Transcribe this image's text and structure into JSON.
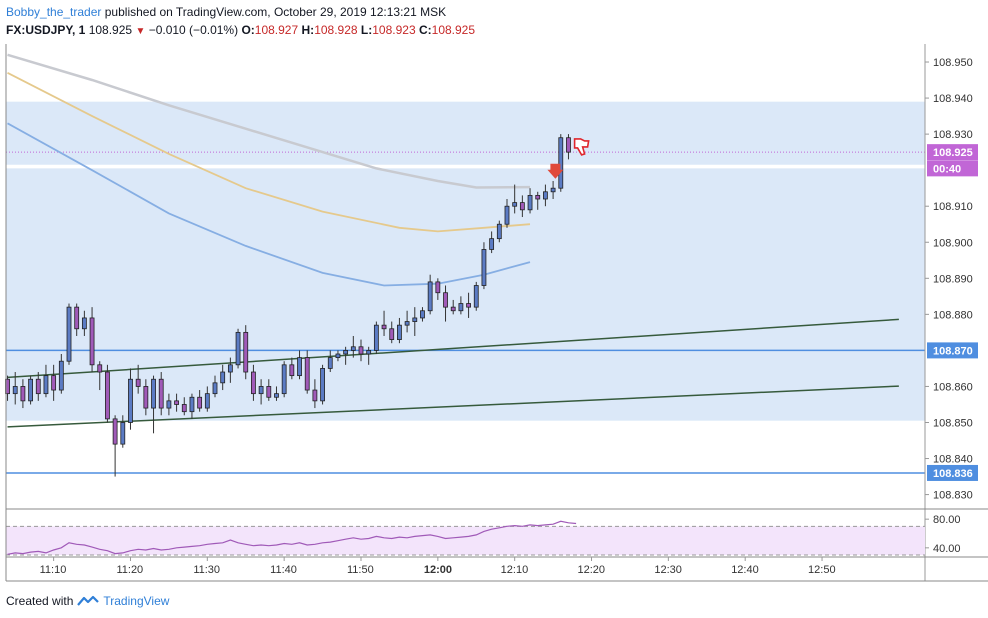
{
  "header": {
    "author": "Bobby_the_trader",
    "published_text": "published on TradingView.com, October 29, 2019 12:13:21 MSK",
    "symbol": "FX:USDJPY, 1",
    "price": "108.925",
    "change": "−0.010 (−0.01%)",
    "o_label": "O:",
    "o_value": "108.927",
    "h_label": "H:",
    "h_value": "108.928",
    "l_label": "L:",
    "l_value": "108.923",
    "c_label": "C:",
    "c_value": "108.925"
  },
  "footer": {
    "created_with": "Created with",
    "brand": "TradingView"
  },
  "colors": {
    "bull": "#5b7bc4",
    "bear": "#a05ab8",
    "ma_gray": "#c8cad0",
    "ma_tan": "#e5c98c",
    "ma_blue": "#86aee3",
    "zone": "#dbe8f8",
    "hline": "#4f8ee0",
    "trend": "#365a3c",
    "rsi_line": "#a05ab8",
    "rsi_band": "#f3e4fb",
    "price_badge": "#c166d6"
  },
  "chart_data": {
    "type": "candlestick",
    "symbol": "FX:USDJPY",
    "interval": "1",
    "ylim": [
      108.826,
      108.955
    ],
    "x_range_minutes": [
      -56.2,
      63.4
    ],
    "x_note": "minutes relative to 12:00",
    "y_ticks": [
      "108.950",
      "108.940",
      "108.930",
      "108.910",
      "108.900",
      "108.890",
      "108.880",
      "108.860",
      "108.850",
      "108.840",
      "108.830"
    ],
    "x_ticks": [
      {
        "label": "11:10",
        "t": -50
      },
      {
        "label": "11:20",
        "t": -40
      },
      {
        "label": "11:30",
        "t": -30
      },
      {
        "label": "11:40",
        "t": -20
      },
      {
        "label": "11:50",
        "t": -10
      },
      {
        "label": "12:00",
        "t": 0
      },
      {
        "label": "12:10",
        "t": 10
      },
      {
        "label": "12:20",
        "t": 20
      },
      {
        "label": "12:30",
        "t": 30
      },
      {
        "label": "12:40",
        "t": 40
      },
      {
        "label": "12:50",
        "t": 50
      }
    ],
    "price_labels": [
      {
        "text": "108.925",
        "value": 108.925,
        "kind": "last"
      },
      {
        "text": "00:40",
        "value": 108.9205,
        "kind": "countdown"
      },
      {
        "text": "108.870",
        "value": 108.87,
        "kind": "level"
      },
      {
        "text": "108.836",
        "value": 108.836,
        "kind": "level"
      }
    ],
    "horizontal_levels": [
      108.87,
      108.836
    ],
    "last_price": 108.925,
    "zones": [
      {
        "from": 108.9215,
        "to": 108.939
      },
      {
        "from": 108.8505,
        "to": 108.9205
      }
    ],
    "trendlines": [
      {
        "t1": -56,
        "p1": 108.8625,
        "t2": 60,
        "p2": 108.8786
      },
      {
        "t1": -56,
        "p1": 108.8488,
        "t2": 60,
        "p2": 108.8601
      }
    ],
    "moving_averages": [
      {
        "color_key": "ma_gray",
        "points": [
          [
            -56,
            108.952
          ],
          [
            -45,
            108.945
          ],
          [
            -35,
            108.938
          ],
          [
            -25,
            108.9315
          ],
          [
            -15,
            108.925
          ],
          [
            -8,
            108.9205
          ],
          [
            0,
            108.917
          ],
          [
            5,
            108.9152
          ],
          [
            12,
            108.9153
          ]
        ]
      },
      {
        "color_key": "ma_tan",
        "points": [
          [
            -56,
            108.947
          ],
          [
            -45,
            108.935
          ],
          [
            -35,
            108.9245
          ],
          [
            -25,
            108.915
          ],
          [
            -15,
            108.9085
          ],
          [
            -5,
            108.904
          ],
          [
            0,
            108.903
          ],
          [
            6,
            108.904
          ],
          [
            12,
            108.905
          ]
        ]
      },
      {
        "color_key": "ma_blue",
        "points": [
          [
            -56,
            108.933
          ],
          [
            -45,
            108.92
          ],
          [
            -35,
            108.908
          ],
          [
            -25,
            108.899
          ],
          [
            -15,
            108.8915
          ],
          [
            -7,
            108.888
          ],
          [
            0,
            108.8885
          ],
          [
            6,
            108.891
          ],
          [
            12,
            108.8945
          ]
        ]
      }
    ],
    "candles": [
      {
        "t": -56,
        "o": 108.862,
        "h": 108.863,
        "l": 108.856,
        "c": 108.858
      },
      {
        "t": -55,
        "o": 108.858,
        "h": 108.864,
        "l": 108.855,
        "c": 108.86
      },
      {
        "t": -54,
        "o": 108.86,
        "h": 108.862,
        "l": 108.854,
        "c": 108.856
      },
      {
        "t": -53,
        "o": 108.856,
        "h": 108.863,
        "l": 108.855,
        "c": 108.862
      },
      {
        "t": -52,
        "o": 108.862,
        "h": 108.864,
        "l": 108.856,
        "c": 108.858
      },
      {
        "t": -51,
        "o": 108.858,
        "h": 108.866,
        "l": 108.857,
        "c": 108.863
      },
      {
        "t": -50,
        "o": 108.863,
        "h": 108.866,
        "l": 108.856,
        "c": 108.859
      },
      {
        "t": -49,
        "o": 108.859,
        "h": 108.869,
        "l": 108.858,
        "c": 108.867
      },
      {
        "t": -48,
        "o": 108.867,
        "h": 108.883,
        "l": 108.866,
        "c": 108.882
      },
      {
        "t": -47,
        "o": 108.882,
        "h": 108.883,
        "l": 108.874,
        "c": 108.876
      },
      {
        "t": -46,
        "o": 108.876,
        "h": 108.881,
        "l": 108.874,
        "c": 108.879
      },
      {
        "t": -45,
        "o": 108.879,
        "h": 108.882,
        "l": 108.864,
        "c": 108.866
      },
      {
        "t": -44,
        "o": 108.866,
        "h": 108.867,
        "l": 108.859,
        "c": 108.864
      },
      {
        "t": -43,
        "o": 108.864,
        "h": 108.866,
        "l": 108.85,
        "c": 108.851
      },
      {
        "t": -42,
        "o": 108.851,
        "h": 108.852,
        "l": 108.835,
        "c": 108.844
      },
      {
        "t": -41,
        "o": 108.844,
        "h": 108.852,
        "l": 108.843,
        "c": 108.85
      },
      {
        "t": -40,
        "o": 108.85,
        "h": 108.865,
        "l": 108.848,
        "c": 108.862
      },
      {
        "t": -39,
        "o": 108.862,
        "h": 108.866,
        "l": 108.858,
        "c": 108.86
      },
      {
        "t": -38,
        "o": 108.86,
        "h": 108.862,
        "l": 108.852,
        "c": 108.854
      },
      {
        "t": -37,
        "o": 108.854,
        "h": 108.863,
        "l": 108.847,
        "c": 108.862
      },
      {
        "t": -36,
        "o": 108.862,
        "h": 108.864,
        "l": 108.852,
        "c": 108.854
      },
      {
        "t": -35,
        "o": 108.854,
        "h": 108.858,
        "l": 108.852,
        "c": 108.856
      },
      {
        "t": -34,
        "o": 108.856,
        "h": 108.858,
        "l": 108.853,
        "c": 108.855
      },
      {
        "t": -33,
        "o": 108.855,
        "h": 108.857,
        "l": 108.852,
        "c": 108.853
      },
      {
        "t": -32,
        "o": 108.853,
        "h": 108.858,
        "l": 108.851,
        "c": 108.857
      },
      {
        "t": -31,
        "o": 108.857,
        "h": 108.859,
        "l": 108.853,
        "c": 108.854
      },
      {
        "t": -30,
        "o": 108.854,
        "h": 108.86,
        "l": 108.853,
        "c": 108.858
      },
      {
        "t": -29,
        "o": 108.858,
        "h": 108.863,
        "l": 108.857,
        "c": 108.861
      },
      {
        "t": -28,
        "o": 108.861,
        "h": 108.866,
        "l": 108.859,
        "c": 108.864
      },
      {
        "t": -27,
        "o": 108.864,
        "h": 108.868,
        "l": 108.861,
        "c": 108.866
      },
      {
        "t": -26,
        "o": 108.866,
        "h": 108.876,
        "l": 108.865,
        "c": 108.875
      },
      {
        "t": -25,
        "o": 108.875,
        "h": 108.877,
        "l": 108.862,
        "c": 108.864
      },
      {
        "t": -24,
        "o": 108.864,
        "h": 108.866,
        "l": 108.856,
        "c": 108.858
      },
      {
        "t": -23,
        "o": 108.858,
        "h": 108.862,
        "l": 108.855,
        "c": 108.86
      },
      {
        "t": -22,
        "o": 108.86,
        "h": 108.862,
        "l": 108.856,
        "c": 108.857
      },
      {
        "t": -21,
        "o": 108.857,
        "h": 108.86,
        "l": 108.856,
        "c": 108.858
      },
      {
        "t": -20,
        "o": 108.858,
        "h": 108.867,
        "l": 108.857,
        "c": 108.866
      },
      {
        "t": -19,
        "o": 108.866,
        "h": 108.868,
        "l": 108.862,
        "c": 108.863
      },
      {
        "t": -18,
        "o": 108.863,
        "h": 108.87,
        "l": 108.862,
        "c": 108.868
      },
      {
        "t": -17,
        "o": 108.868,
        "h": 108.87,
        "l": 108.858,
        "c": 108.859
      },
      {
        "t": -16,
        "o": 108.859,
        "h": 108.862,
        "l": 108.854,
        "c": 108.856
      },
      {
        "t": -15,
        "o": 108.856,
        "h": 108.866,
        "l": 108.855,
        "c": 108.865
      },
      {
        "t": -14,
        "o": 108.865,
        "h": 108.87,
        "l": 108.864,
        "c": 108.868
      },
      {
        "t": -13,
        "o": 108.868,
        "h": 108.87,
        "l": 108.867,
        "c": 108.869
      },
      {
        "t": -12,
        "o": 108.869,
        "h": 108.871,
        "l": 108.866,
        "c": 108.87
      },
      {
        "t": -11,
        "o": 108.87,
        "h": 108.874,
        "l": 108.868,
        "c": 108.871
      },
      {
        "t": -10,
        "o": 108.871,
        "h": 108.873,
        "l": 108.867,
        "c": 108.869
      },
      {
        "t": -9,
        "o": 108.869,
        "h": 108.871,
        "l": 108.866,
        "c": 108.87
      },
      {
        "t": -8,
        "o": 108.87,
        "h": 108.878,
        "l": 108.869,
        "c": 108.877
      },
      {
        "t": -7,
        "o": 108.877,
        "h": 108.881,
        "l": 108.874,
        "c": 108.876
      },
      {
        "t": -6,
        "o": 108.876,
        "h": 108.878,
        "l": 108.872,
        "c": 108.873
      },
      {
        "t": -5,
        "o": 108.873,
        "h": 108.879,
        "l": 108.872,
        "c": 108.877
      },
      {
        "t": -4,
        "o": 108.877,
        "h": 108.881,
        "l": 108.875,
        "c": 108.878
      },
      {
        "t": -3,
        "o": 108.878,
        "h": 108.882,
        "l": 108.874,
        "c": 108.879
      },
      {
        "t": -2,
        "o": 108.879,
        "h": 108.882,
        "l": 108.878,
        "c": 108.881
      },
      {
        "t": -1,
        "o": 108.881,
        "h": 108.891,
        "l": 108.88,
        "c": 108.889
      },
      {
        "t": 0,
        "o": 108.889,
        "h": 108.89,
        "l": 108.884,
        "c": 108.886
      },
      {
        "t": 1,
        "o": 108.886,
        "h": 108.888,
        "l": 108.878,
        "c": 108.882
      },
      {
        "t": 2,
        "o": 108.882,
        "h": 108.884,
        "l": 108.88,
        "c": 108.881
      },
      {
        "t": 3,
        "o": 108.881,
        "h": 108.885,
        "l": 108.88,
        "c": 108.883
      },
      {
        "t": 4,
        "o": 108.883,
        "h": 108.886,
        "l": 108.879,
        "c": 108.882
      },
      {
        "t": 5,
        "o": 108.882,
        "h": 108.889,
        "l": 108.881,
        "c": 108.888
      },
      {
        "t": 6,
        "o": 108.888,
        "h": 108.9,
        "l": 108.887,
        "c": 108.898
      },
      {
        "t": 7,
        "o": 108.898,
        "h": 108.903,
        "l": 108.897,
        "c": 108.901
      },
      {
        "t": 8,
        "o": 108.901,
        "h": 108.906,
        "l": 108.9,
        "c": 108.905
      },
      {
        "t": 9,
        "o": 108.905,
        "h": 108.912,
        "l": 108.904,
        "c": 108.91
      },
      {
        "t": 10,
        "o": 108.91,
        "h": 108.916,
        "l": 108.908,
        "c": 108.911
      },
      {
        "t": 11,
        "o": 108.911,
        "h": 108.913,
        "l": 108.907,
        "c": 108.909
      },
      {
        "t": 12,
        "o": 108.909,
        "h": 108.915,
        "l": 108.908,
        "c": 108.913
      },
      {
        "t": 13,
        "o": 108.913,
        "h": 108.914,
        "l": 108.909,
        "c": 108.912
      },
      {
        "t": 14,
        "o": 108.912,
        "h": 108.916,
        "l": 108.91,
        "c": 108.914
      },
      {
        "t": 15,
        "o": 108.914,
        "h": 108.917,
        "l": 108.912,
        "c": 108.915
      },
      {
        "t": 16,
        "o": 108.915,
        "h": 108.93,
        "l": 108.914,
        "c": 108.929
      },
      {
        "t": 17,
        "o": 108.929,
        "h": 108.93,
        "l": 108.923,
        "c": 108.925
      }
    ],
    "signals": [
      {
        "type": "arrow-down",
        "t": 15.3,
        "value": 108.919,
        "color": "#e04a3a"
      },
      {
        "type": "thumbs-down",
        "t": 17.8,
        "value": 108.927,
        "color": "#e0262c"
      }
    ],
    "rsi": {
      "ylim": [
        30,
        90
      ],
      "y_ticks": [
        "80.00",
        "40.00"
      ],
      "upper_band": 70,
      "lower_band": 30,
      "values": [
        [
          -56,
          31
        ],
        [
          -55,
          33
        ],
        [
          -54,
          32
        ],
        [
          -53,
          34
        ],
        [
          -52,
          35
        ],
        [
          -51,
          33
        ],
        [
          -50,
          37
        ],
        [
          -49,
          40
        ],
        [
          -48,
          47
        ],
        [
          -47,
          45
        ],
        [
          -46,
          44
        ],
        [
          -45,
          41
        ],
        [
          -44,
          38
        ],
        [
          -43,
          36
        ],
        [
          -42,
          32
        ],
        [
          -41,
          33
        ],
        [
          -40,
          36
        ],
        [
          -39,
          38
        ],
        [
          -38,
          37
        ],
        [
          -37,
          39
        ],
        [
          -36,
          37
        ],
        [
          -35,
          38
        ],
        [
          -34,
          40
        ],
        [
          -33,
          41
        ],
        [
          -32,
          42
        ],
        [
          -31,
          43
        ],
        [
          -30,
          45
        ],
        [
          -29,
          46
        ],
        [
          -28,
          47
        ],
        [
          -27,
          51
        ],
        [
          -26,
          47
        ],
        [
          -25,
          45
        ],
        [
          -24,
          43
        ],
        [
          -23,
          44
        ],
        [
          -22,
          43
        ],
        [
          -21,
          44
        ],
        [
          -20,
          46
        ],
        [
          -19,
          45
        ],
        [
          -18,
          47
        ],
        [
          -17,
          44
        ],
        [
          -16,
          45
        ],
        [
          -15,
          47
        ],
        [
          -14,
          48
        ],
        [
          -13,
          50
        ],
        [
          -12,
          52
        ],
        [
          -11,
          54
        ],
        [
          -10,
          52
        ],
        [
          -9,
          53
        ],
        [
          -8,
          56
        ],
        [
          -7,
          54
        ],
        [
          -6,
          53
        ],
        [
          -5,
          55
        ],
        [
          -4,
          54
        ],
        [
          -3,
          56
        ],
        [
          -2,
          57
        ],
        [
          -1,
          58
        ],
        [
          0,
          56
        ],
        [
          1,
          53
        ],
        [
          2,
          54
        ],
        [
          3,
          55
        ],
        [
          4,
          56
        ],
        [
          5,
          58
        ],
        [
          6,
          63
        ],
        [
          7,
          66
        ],
        [
          8,
          68
        ],
        [
          9,
          70
        ],
        [
          10,
          71
        ],
        [
          11,
          70
        ],
        [
          12,
          72
        ],
        [
          13,
          71
        ],
        [
          14,
          72
        ],
        [
          15,
          73
        ],
        [
          16,
          77
        ],
        [
          17,
          75
        ],
        [
          18,
          74
        ]
      ]
    }
  }
}
